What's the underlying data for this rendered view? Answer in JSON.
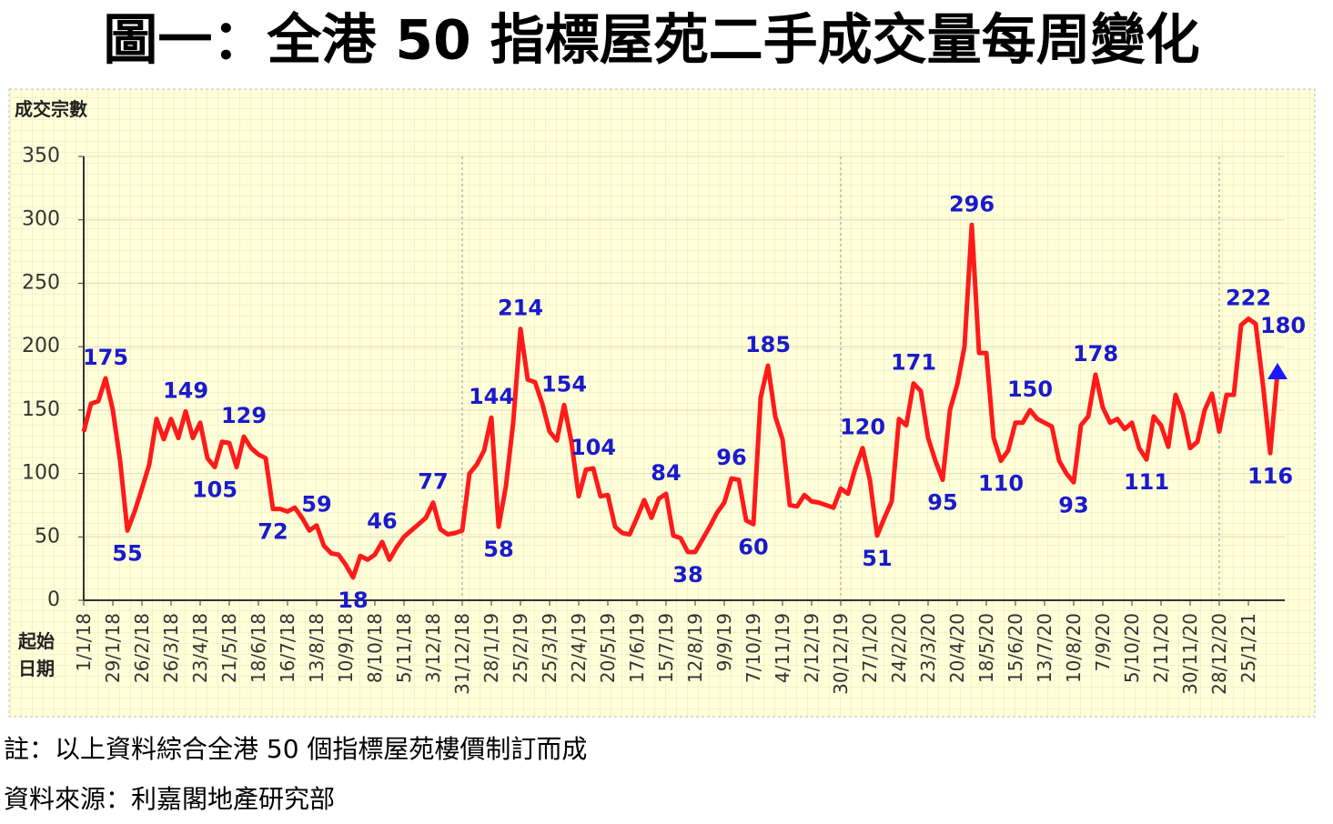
{
  "chart_data": {
    "type": "line",
    "title": "圖一：全港 50 指標屋苑二手成交量每周變化",
    "y_label": "成交宗數",
    "x_label": "起始\n日期",
    "notes": [
      "註：以上資料綜合全港 50 個指標屋苑樓價制訂而成",
      "資料來源：利嘉閣地產研究部"
    ],
    "categories": [
      "1/1/18",
      null,
      null,
      null,
      "29/1/18",
      null,
      null,
      null,
      "26/2/18",
      null,
      null,
      null,
      "26/3/18",
      null,
      null,
      null,
      "23/4/18",
      null,
      null,
      null,
      "21/5/18",
      null,
      null,
      null,
      "18/6/18",
      null,
      null,
      null,
      "16/7/18",
      null,
      null,
      null,
      "13/8/18",
      null,
      null,
      null,
      "10/9/18",
      null,
      null,
      null,
      "8/10/18",
      null,
      null,
      null,
      "5/11/18",
      null,
      null,
      null,
      "3/12/18",
      null,
      null,
      null,
      "31/12/18",
      null,
      null,
      null,
      "28/1/19",
      null,
      null,
      null,
      "25/2/19",
      null,
      null,
      null,
      "25/3/19",
      null,
      null,
      null,
      "22/4/19",
      null,
      null,
      null,
      "20/5/19",
      null,
      null,
      null,
      "17/6/19",
      null,
      null,
      null,
      "15/7/19",
      null,
      null,
      null,
      "12/8/19",
      null,
      null,
      null,
      "9/9/19",
      null,
      null,
      null,
      "7/10/19",
      null,
      null,
      null,
      "4/11/19",
      null,
      null,
      null,
      "2/12/19",
      null,
      null,
      null,
      "30/12/19",
      null,
      null,
      null,
      "27/1/20",
      null,
      null,
      null,
      "24/2/20",
      null,
      null,
      null,
      "23/3/20",
      null,
      null,
      null,
      "20/4/20",
      null,
      null,
      null,
      "18/5/20",
      null,
      null,
      null,
      "15/6/20",
      null,
      null,
      null,
      "13/7/20",
      null,
      null,
      null,
      "10/8/20",
      null,
      null,
      null,
      "7/9/20",
      null,
      null,
      null,
      "5/10/20",
      null,
      null,
      null,
      "2/11/20",
      null,
      null,
      null,
      "30/11/20",
      null,
      null,
      null,
      "28/12/20",
      null,
      null,
      null,
      "25/1/21",
      null,
      null,
      null,
      null
    ],
    "series": [
      {
        "name": "成交宗數",
        "color": "#ff1a1a",
        "values": [
          133,
          155,
          157,
          175,
          150,
          110,
          55,
          70,
          88,
          107,
          143,
          127,
          143,
          128,
          149,
          128,
          140,
          112,
          105,
          125,
          124,
          105,
          129,
          120,
          115,
          112,
          72,
          72,
          70,
          73,
          65,
          55,
          59,
          43,
          37,
          36,
          28,
          18,
          35,
          32,
          36,
          46,
          32,
          42,
          50,
          55,
          60,
          65,
          77,
          56,
          52,
          53,
          55,
          100,
          107,
          118,
          144,
          58,
          90,
          140,
          214,
          174,
          172,
          155,
          133,
          126,
          154,
          125,
          82,
          103,
          104,
          82,
          83,
          58,
          53,
          52,
          65,
          79,
          65,
          80,
          84,
          51,
          49,
          38,
          38,
          48,
          58,
          69,
          77,
          96,
          95,
          63,
          60,
          160,
          185,
          145,
          127,
          75,
          74,
          83,
          78,
          77,
          75,
          73,
          88,
          84,
          104,
          120,
          95,
          51,
          65,
          78,
          143,
          138,
          171,
          165,
          128,
          110,
          95,
          150,
          170,
          200,
          296,
          195,
          195,
          128,
          110,
          118,
          140,
          140,
          150,
          143,
          140,
          137,
          110,
          100,
          93,
          138,
          145,
          178,
          152,
          140,
          143,
          135,
          140,
          120,
          111,
          145,
          138,
          121,
          162,
          147,
          120,
          125,
          150,
          163,
          133,
          162,
          162,
          217,
          222,
          218,
          170,
          116,
          180
        ],
        "value_labels": [
          null,
          null,
          null,
          "175",
          null,
          null,
          "55",
          null,
          null,
          null,
          null,
          null,
          null,
          null,
          "149",
          null,
          null,
          null,
          "105",
          null,
          null,
          null,
          "129",
          null,
          null,
          null,
          "72",
          null,
          null,
          null,
          null,
          null,
          "59",
          null,
          null,
          null,
          null,
          "18",
          null,
          null,
          null,
          "46",
          null,
          null,
          null,
          null,
          null,
          null,
          "77",
          null,
          null,
          null,
          null,
          null,
          null,
          null,
          "144",
          "58",
          null,
          null,
          "214",
          null,
          null,
          null,
          null,
          null,
          "154",
          null,
          null,
          null,
          "104",
          null,
          null,
          null,
          null,
          null,
          null,
          null,
          null,
          null,
          "84",
          null,
          null,
          "38",
          null,
          null,
          null,
          null,
          null,
          "96",
          null,
          null,
          "60",
          null,
          "185",
          null,
          null,
          null,
          null,
          null,
          null,
          null,
          null,
          null,
          null,
          null,
          null,
          "120",
          null,
          "51",
          null,
          null,
          null,
          null,
          "171",
          null,
          null,
          null,
          "95",
          null,
          null,
          null,
          "296",
          null,
          null,
          null,
          "110",
          null,
          null,
          null,
          "150",
          null,
          null,
          null,
          null,
          null,
          "93",
          null,
          null,
          "178",
          null,
          null,
          null,
          null,
          null,
          null,
          "111",
          null,
          null,
          null,
          null,
          null,
          null,
          null,
          null,
          null,
          null,
          null,
          null,
          null,
          "222",
          null,
          null,
          "116",
          "180"
        ]
      }
    ],
    "label_color": "#1a1acc",
    "ylim": [
      0,
      350
    ],
    "yticks": [
      0,
      50,
      100,
      150,
      200,
      250,
      300,
      350
    ],
    "grid": true
  }
}
